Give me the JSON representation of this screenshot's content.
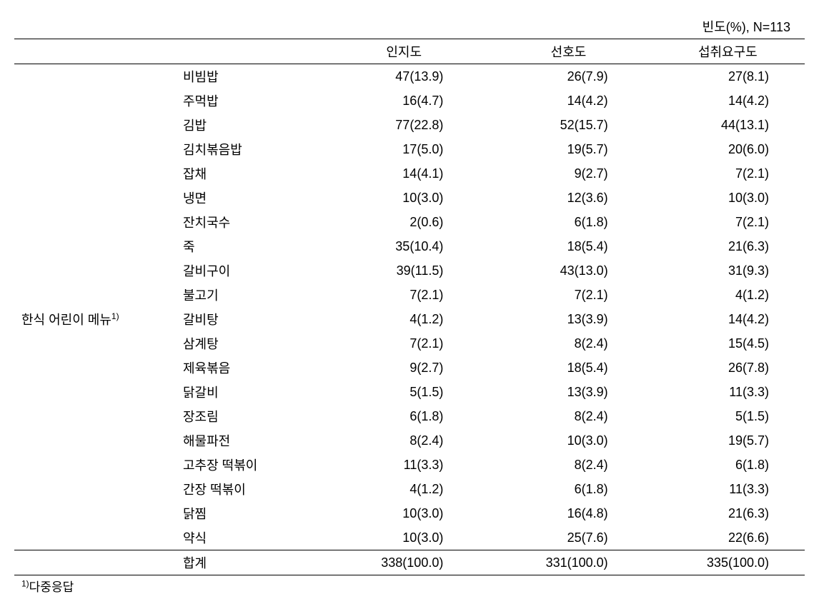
{
  "table": {
    "caption": "빈도(%), N=113",
    "category_label": "한식 어린이 메뉴",
    "category_superscript": "1)",
    "columns": {
      "col1": "인지도",
      "col2": "선호도",
      "col3": "섭취요구도"
    },
    "rows": [
      {
        "item": "비빔밥",
        "c1": "47(13.9)",
        "c2": "26(7.9)",
        "c3": "27(8.1)"
      },
      {
        "item": "주먹밥",
        "c1": "16(4.7)",
        "c2": "14(4.2)",
        "c3": "14(4.2)"
      },
      {
        "item": "김밥",
        "c1": "77(22.8)",
        "c2": "52(15.7)",
        "c3": "44(13.1)"
      },
      {
        "item": "김치볶음밥",
        "c1": "17(5.0)",
        "c2": "19(5.7)",
        "c3": "20(6.0)"
      },
      {
        "item": "잡채",
        "c1": "14(4.1)",
        "c2": "9(2.7)",
        "c3": "7(2.1)"
      },
      {
        "item": "냉면",
        "c1": "10(3.0)",
        "c2": "12(3.6)",
        "c3": "10(3.0)"
      },
      {
        "item": "잔치국수",
        "c1": "2(0.6)",
        "c2": "6(1.8)",
        "c3": "7(2.1)"
      },
      {
        "item": "죽",
        "c1": "35(10.4)",
        "c2": "18(5.4)",
        "c3": "21(6.3)"
      },
      {
        "item": "갈비구이",
        "c1": "39(11.5)",
        "c2": "43(13.0)",
        "c3": "31(9.3)"
      },
      {
        "item": "불고기",
        "c1": "7(2.1)",
        "c2": "7(2.1)",
        "c3": "4(1.2)"
      },
      {
        "item": "갈비탕",
        "c1": "4(1.2)",
        "c2": "13(3.9)",
        "c3": "14(4.2)"
      },
      {
        "item": "삼계탕",
        "c1": "7(2.1)",
        "c2": "8(2.4)",
        "c3": "15(4.5)"
      },
      {
        "item": "제육볶음",
        "c1": "9(2.7)",
        "c2": "18(5.4)",
        "c3": "26(7.8)"
      },
      {
        "item": "닭갈비",
        "c1": "5(1.5)",
        "c2": "13(3.9)",
        "c3": "11(3.3)"
      },
      {
        "item": "장조림",
        "c1": "6(1.8)",
        "c2": "8(2.4)",
        "c3": "5(1.5)"
      },
      {
        "item": "해물파전",
        "c1": "8(2.4)",
        "c2": "10(3.0)",
        "c3": "19(5.7)"
      },
      {
        "item": "고추장 떡볶이",
        "c1": "11(3.3)",
        "c2": "8(2.4)",
        "c3": "6(1.8)"
      },
      {
        "item": "간장 떡볶이",
        "c1": "4(1.2)",
        "c2": "6(1.8)",
        "c3": "11(3.3)"
      },
      {
        "item": "닭찜",
        "c1": "10(3.0)",
        "c2": "16(4.8)",
        "c3": "21(6.3)"
      },
      {
        "item": "약식",
        "c1": "10(3.0)",
        "c2": "25(7.6)",
        "c3": "22(6.6)"
      }
    ],
    "total": {
      "label": "합계",
      "c1": "338(100.0)",
      "c2": "331(100.0)",
      "c3": "335(100.0)"
    },
    "footnote_sup": "1)",
    "footnote_text": "다중응답"
  },
  "style": {
    "font_size": 18,
    "background_color": "#ffffff",
    "text_color": "#000000",
    "border_color": "#000000",
    "column_widths": {
      "category": 230,
      "item": 200,
      "data": 225
    }
  }
}
